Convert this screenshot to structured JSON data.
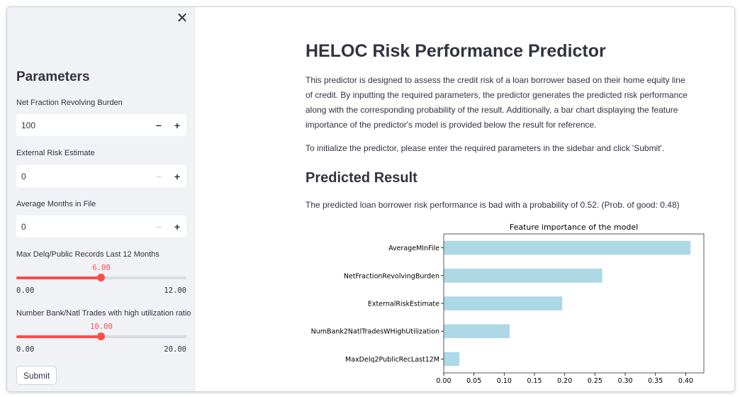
{
  "sidebar": {
    "close_glyph": "✕",
    "title": "Parameters",
    "inputs": [
      {
        "label": "Net Fraction Revolving Burden",
        "value": "100",
        "minus": "−",
        "plus": "+",
        "minus_disabled": false
      },
      {
        "label": "External Risk Estimate",
        "value": "0",
        "minus": "−",
        "plus": "+",
        "minus_disabled": true
      },
      {
        "label": "Average Months in File",
        "value": "0",
        "minus": "−",
        "plus": "+",
        "minus_disabled": true
      }
    ],
    "sliders": [
      {
        "label": "Max Delq/Public Records Last 12 Months",
        "value": "6.00",
        "min": "0.00",
        "max": "12.00",
        "fraction": 0.5
      },
      {
        "label": "Number Bank/Natl Trades with high utilization ratio",
        "value": "10.00",
        "min": "0.00",
        "max": "20.00",
        "fraction": 0.5
      }
    ],
    "submit_label": "Submit"
  },
  "main": {
    "title": "HELOC Risk Performance Predictor",
    "intro": "This predictor is designed to assess the credit risk of a loan borrower based on their home equity line of credit. By inputting the required parameters, the predictor generates the predicted risk performance along with the corresponding probability of the result. Additionally, a bar chart displaying the feature importance of the predictor's model is provided below the result for reference.",
    "instruction": "To initialize the predictor, please enter the required parameters in the sidebar and click 'Submit'.",
    "result_heading": "Predicted Result",
    "result_text": "The predicted loan borrower risk performance is bad with a probability of 0.52. (Prob. of good: 0.48)"
  },
  "chart_data": {
    "type": "bar",
    "orientation": "horizontal",
    "title": "Feature importance of the model",
    "categories": [
      "AverageMInFile",
      "NetFractionRevolvingBurden",
      "ExternalRiskEstimate",
      "NumBank2NatlTradesWHighUtilization",
      "MaxDelq2PublicRecLast12M"
    ],
    "values": [
      0.408,
      0.262,
      0.196,
      0.109,
      0.026
    ],
    "xlim": [
      0,
      0.43
    ],
    "xticks": [
      "0.00",
      "0.05",
      "0.10",
      "0.15",
      "0.20",
      "0.25",
      "0.30",
      "0.35",
      "0.40"
    ],
    "bar_color": "#add8e6",
    "grid": false,
    "legend": "none"
  }
}
